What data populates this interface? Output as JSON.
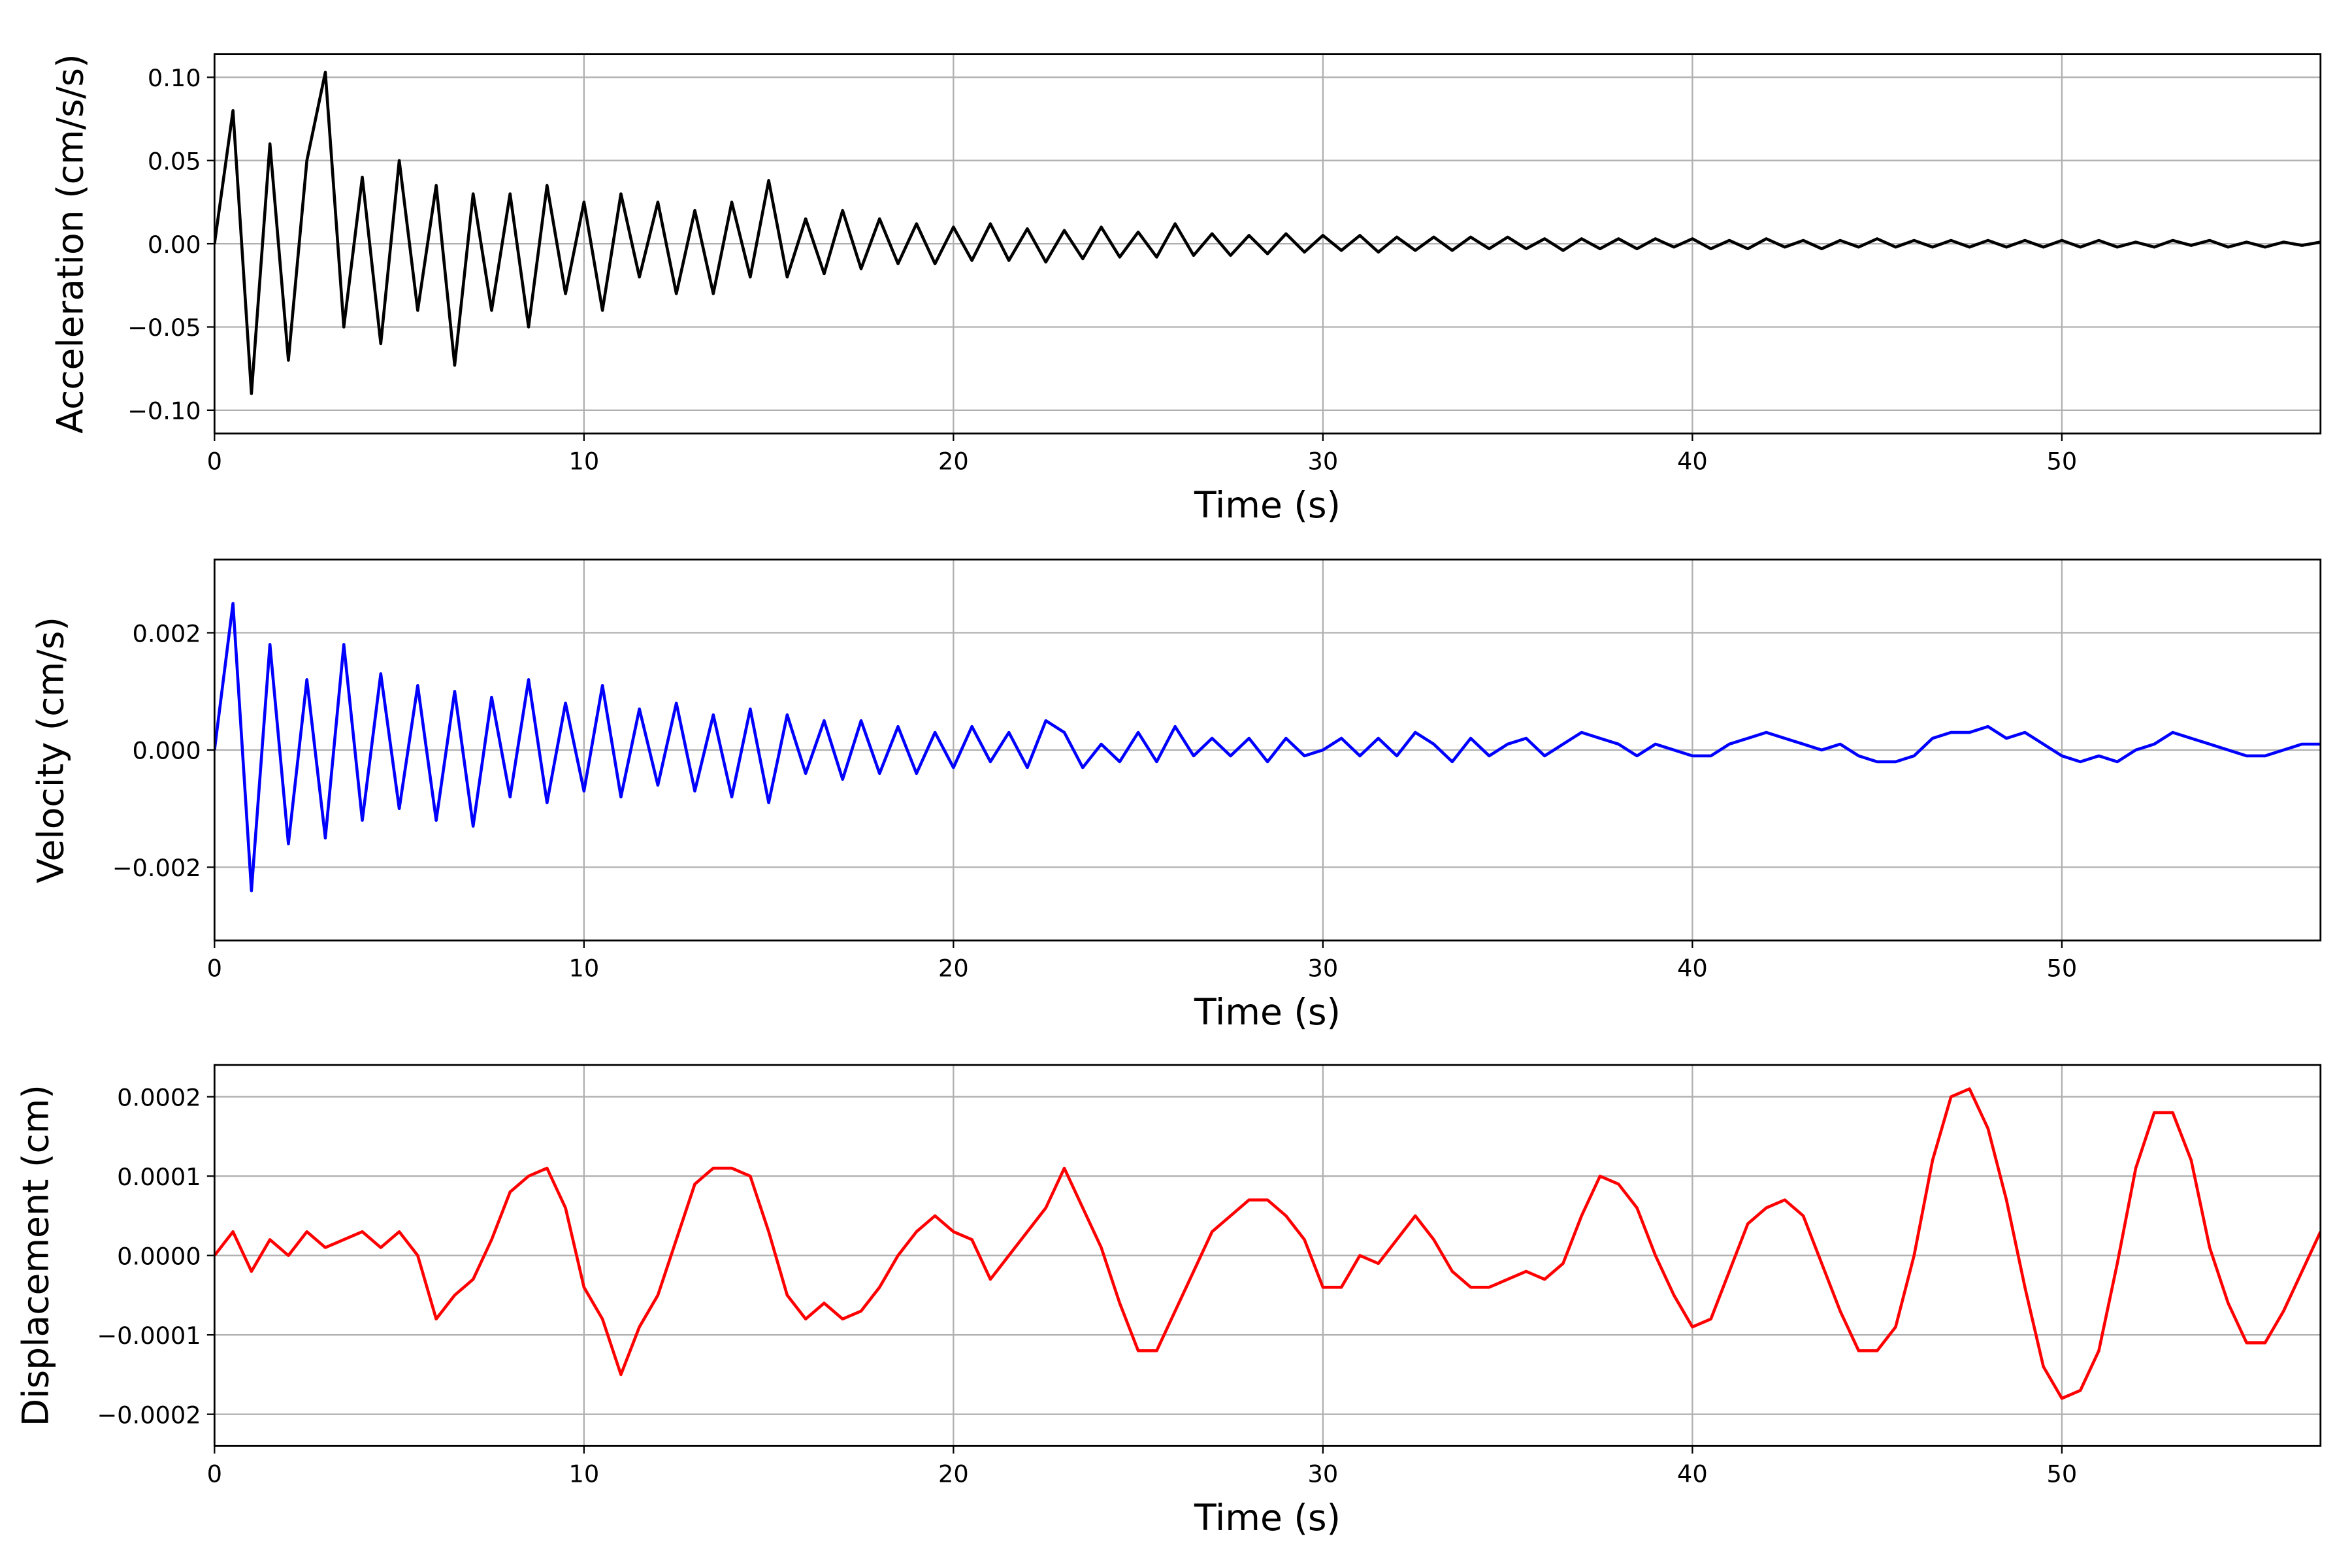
{
  "chart_data": [
    {
      "type": "line",
      "xlabel": "Time (s)",
      "ylabel": "Acceleration (cm/s/s)",
      "color": "#000000",
      "grid": true,
      "xlim": [
        0,
        57
      ],
      "xticks": [
        0,
        10,
        20,
        30,
        40,
        50
      ],
      "ylim": [
        -0.114,
        0.114
      ],
      "yticks": [
        {
          "value": -0.1,
          "label": "−0.10"
        },
        {
          "value": -0.05,
          "label": "−0.05"
        },
        {
          "value": 0,
          "label": "0.00"
        },
        {
          "value": 0.05,
          "label": "0.05"
        },
        {
          "value": 0.1,
          "label": "0.10"
        }
      ],
      "x": [
        0,
        0.5,
        1,
        1.5,
        2,
        2.5,
        3,
        3.5,
        4,
        4.5,
        5,
        5.5,
        6,
        6.5,
        7,
        7.5,
        8,
        8.5,
        9,
        9.5,
        10,
        10.5,
        11,
        11.5,
        12,
        12.5,
        13,
        13.5,
        14,
        14.5,
        15,
        15.5,
        16,
        16.5,
        17,
        17.5,
        18,
        18.5,
        19,
        19.5,
        20,
        20.5,
        21,
        21.5,
        22,
        22.5,
        23,
        23.5,
        24,
        24.5,
        25,
        25.5,
        26,
        26.5,
        27,
        27.5,
        28,
        28.5,
        29,
        29.5,
        30,
        30.5,
        31,
        31.5,
        32,
        32.5,
        33,
        33.5,
        34,
        34.5,
        35,
        35.5,
        36,
        36.5,
        37,
        37.5,
        38,
        38.5,
        39,
        39.5,
        40,
        40.5,
        41,
        41.5,
        42,
        42.5,
        43,
        43.5,
        44,
        44.5,
        45,
        45.5,
        46,
        46.5,
        47,
        47.5,
        48,
        48.5,
        49,
        49.5,
        50,
        50.5,
        51,
        51.5,
        52,
        52.5,
        53,
        53.5,
        54,
        54.5,
        55,
        55.5,
        56,
        56.5,
        57
      ],
      "values": [
        0,
        0.08,
        -0.09,
        0.06,
        -0.07,
        0.05,
        0.103,
        -0.05,
        0.04,
        -0.06,
        0.05,
        -0.04,
        0.035,
        -0.073,
        0.03,
        -0.04,
        0.03,
        -0.05,
        0.035,
        -0.03,
        0.025,
        -0.04,
        0.03,
        -0.02,
        0.025,
        -0.03,
        0.02,
        -0.03,
        0.025,
        -0.02,
        0.038,
        -0.02,
        0.015,
        -0.018,
        0.02,
        -0.015,
        0.015,
        -0.012,
        0.012,
        -0.012,
        0.01,
        -0.01,
        0.012,
        -0.01,
        0.009,
        -0.011,
        0.008,
        -0.009,
        0.01,
        -0.008,
        0.007,
        -0.008,
        0.012,
        -0.007,
        0.006,
        -0.007,
        0.005,
        -0.006,
        0.006,
        -0.005,
        0.005,
        -0.004,
        0.005,
        -0.005,
        0.004,
        -0.004,
        0.004,
        -0.004,
        0.004,
        -0.003,
        0.004,
        -0.003,
        0.003,
        -0.004,
        0.003,
        -0.003,
        0.003,
        -0.003,
        0.003,
        -0.002,
        0.003,
        -0.003,
        0.002,
        -0.003,
        0.003,
        -0.002,
        0.002,
        -0.003,
        0.002,
        -0.002,
        0.003,
        -0.002,
        0.002,
        -0.002,
        0.002,
        -0.002,
        0.002,
        -0.002,
        0.002,
        -0.002,
        0.002,
        -0.002,
        0.002,
        -0.002,
        0.001,
        -0.002,
        0.002,
        -0.001,
        0.002,
        -0.002,
        0.001,
        -0.002,
        0.001,
        -0.001,
        0.001
      ]
    },
    {
      "type": "line",
      "xlabel": "Time (s)",
      "ylabel": "Velocity (cm/s)",
      "color": "#0000ff",
      "grid": true,
      "xlim": [
        0,
        57
      ],
      "xticks": [
        0,
        10,
        20,
        30,
        40,
        50
      ],
      "ylim": [
        -0.00325,
        0.00325
      ],
      "yticks": [
        {
          "value": -0.002,
          "label": "−0.002"
        },
        {
          "value": 0,
          "label": "0.000"
        },
        {
          "value": 0.002,
          "label": "0.002"
        }
      ],
      "x": [
        0,
        0.5,
        1,
        1.5,
        2,
        2.5,
        3,
        3.5,
        4,
        4.5,
        5,
        5.5,
        6,
        6.5,
        7,
        7.5,
        8,
        8.5,
        9,
        9.5,
        10,
        10.5,
        11,
        11.5,
        12,
        12.5,
        13,
        13.5,
        14,
        14.5,
        15,
        15.5,
        16,
        16.5,
        17,
        17.5,
        18,
        18.5,
        19,
        19.5,
        20,
        20.5,
        21,
        21.5,
        22,
        22.5,
        23,
        23.5,
        24,
        24.5,
        25,
        25.5,
        26,
        26.5,
        27,
        27.5,
        28,
        28.5,
        29,
        29.5,
        30,
        30.5,
        31,
        31.5,
        32,
        32.5,
        33,
        33.5,
        34,
        34.5,
        35,
        35.5,
        36,
        36.5,
        37,
        37.5,
        38,
        38.5,
        39,
        39.5,
        40,
        40.5,
        41,
        41.5,
        42,
        42.5,
        43,
        43.5,
        44,
        44.5,
        45,
        45.5,
        46,
        46.5,
        47,
        47.5,
        48,
        48.5,
        49,
        49.5,
        50,
        50.5,
        51,
        51.5,
        52,
        52.5,
        53,
        53.5,
        54,
        54.5,
        55,
        55.5,
        56,
        56.5,
        57
      ],
      "values": [
        0,
        0.0025,
        -0.0024,
        0.0018,
        -0.0016,
        0.0012,
        -0.0015,
        0.0018,
        -0.0012,
        0.0013,
        -0.001,
        0.0011,
        -0.0012,
        0.001,
        -0.0013,
        0.0009,
        -0.0008,
        0.0012,
        -0.0009,
        0.0008,
        -0.0007,
        0.0011,
        -0.0008,
        0.0007,
        -0.0006,
        0.0008,
        -0.0007,
        0.0006,
        -0.0008,
        0.0007,
        -0.0009,
        0.0006,
        -0.0004,
        0.0005,
        -0.0005,
        0.0005,
        -0.0004,
        0.0004,
        -0.0004,
        0.0003,
        -0.0003,
        0.0004,
        -0.0002,
        0.0003,
        -0.0003,
        0.0005,
        0.0003,
        -0.0003,
        0.0001,
        -0.0002,
        0.0003,
        -0.0002,
        0.0004,
        -0.0001,
        0.0002,
        -0.0001,
        0.0002,
        -0.0002,
        0.0002,
        -0.0001,
        0,
        0.0002,
        -0.0001,
        0.0002,
        -0.0001,
        0.0003,
        0.0001,
        -0.0002,
        0.0002,
        -0.0001,
        0.0001,
        0.0002,
        -0.0001,
        0.0001,
        0.0003,
        0.0002,
        0.0001,
        -0.0001,
        0.0001,
        0,
        -0.0001,
        -0.0001,
        0.0001,
        0.0002,
        0.0003,
        0.0002,
        0.0001,
        0,
        0.0001,
        -0.0001,
        -0.0002,
        -0.0002,
        -0.0001,
        0.0002,
        0.0003,
        0.0003,
        0.0004,
        0.0002,
        0.0003,
        0.0001,
        -0.0001,
        -0.0002,
        -0.0001,
        -0.0002,
        0,
        0.0001,
        0.0003,
        0.0002,
        0.0001,
        0,
        -0.0001,
        -0.0001,
        0,
        0.0001,
        0.0001
      ]
    },
    {
      "type": "line",
      "xlabel": "Time (s)",
      "ylabel": "Displacement (cm)",
      "color": "#ff0000",
      "grid": true,
      "xlim": [
        0,
        57
      ],
      "xticks": [
        0,
        10,
        20,
        30,
        40,
        50
      ],
      "ylim": [
        -0.00024,
        0.00024
      ],
      "yticks": [
        {
          "value": -0.0002,
          "label": "−0.0002"
        },
        {
          "value": -0.0001,
          "label": "−0.0001"
        },
        {
          "value": 0,
          "label": "0.0000"
        },
        {
          "value": 0.0001,
          "label": "0.0001"
        },
        {
          "value": 0.0002,
          "label": "0.0002"
        }
      ],
      "x": [
        0,
        0.5,
        1,
        1.5,
        2,
        2.5,
        3,
        3.5,
        4,
        4.5,
        5,
        5.5,
        6,
        6.5,
        7,
        7.5,
        8,
        8.5,
        9,
        9.5,
        10,
        10.5,
        11,
        11.5,
        12,
        12.5,
        13,
        13.5,
        14,
        14.5,
        15,
        15.5,
        16,
        16.5,
        17,
        17.5,
        18,
        18.5,
        19,
        19.5,
        20,
        20.5,
        21,
        21.5,
        22,
        22.5,
        23,
        23.5,
        24,
        24.5,
        25,
        25.5,
        26,
        26.5,
        27,
        27.5,
        28,
        28.5,
        29,
        29.5,
        30,
        30.5,
        31,
        31.5,
        32,
        32.5,
        33,
        33.5,
        34,
        34.5,
        35,
        35.5,
        36,
        36.5,
        37,
        37.5,
        38,
        38.5,
        39,
        39.5,
        40,
        40.5,
        41,
        41.5,
        42,
        42.5,
        43,
        43.5,
        44,
        44.5,
        45,
        45.5,
        46,
        46.5,
        47,
        47.5,
        48,
        48.5,
        49,
        49.5,
        50,
        50.5,
        51,
        51.5,
        52,
        52.5,
        53,
        53.5,
        54,
        54.5,
        55,
        55.5,
        56,
        56.5,
        57
      ],
      "values": [
        0,
        3e-05,
        -2e-05,
        2e-05,
        0,
        3e-05,
        1e-05,
        2e-05,
        3e-05,
        1e-05,
        3e-05,
        0,
        -8e-05,
        -5e-05,
        -3e-05,
        2e-05,
        8e-05,
        0.0001,
        0.00011,
        6e-05,
        -4e-05,
        -8e-05,
        -0.00015,
        -9e-05,
        -5e-05,
        2e-05,
        9e-05,
        0.00011,
        0.00011,
        0.0001,
        3e-05,
        -5e-05,
        -8e-05,
        -6e-05,
        -8e-05,
        -7e-05,
        -4e-05,
        0,
        3e-05,
        5e-05,
        3e-05,
        2e-05,
        -3e-05,
        0,
        3e-05,
        6e-05,
        0.00011,
        6e-05,
        1e-05,
        -6e-05,
        -0.00012,
        -0.00012,
        -7e-05,
        -2e-05,
        3e-05,
        5e-05,
        7e-05,
        7e-05,
        5e-05,
        2e-05,
        -4e-05,
        -4e-05,
        0,
        -1e-05,
        2e-05,
        5e-05,
        2e-05,
        -2e-05,
        -4e-05,
        -4e-05,
        -3e-05,
        -2e-05,
        -3e-05,
        -1e-05,
        5e-05,
        0.0001,
        9e-05,
        6e-05,
        0,
        -5e-05,
        -9e-05,
        -8e-05,
        -2e-05,
        4e-05,
        6e-05,
        7e-05,
        5e-05,
        -1e-05,
        -7e-05,
        -0.00012,
        -0.00012,
        -9e-05,
        0,
        0.00012,
        0.0002,
        0.00021,
        0.00016,
        7e-05,
        -4e-05,
        -0.00014,
        -0.00018,
        -0.00017,
        -0.00012,
        -1e-05,
        0.00011,
        0.00018,
        0.00018,
        0.00012,
        1e-05,
        -6e-05,
        -0.00011,
        -0.00011,
        -7e-05,
        -2e-05,
        3e-05
      ]
    }
  ]
}
